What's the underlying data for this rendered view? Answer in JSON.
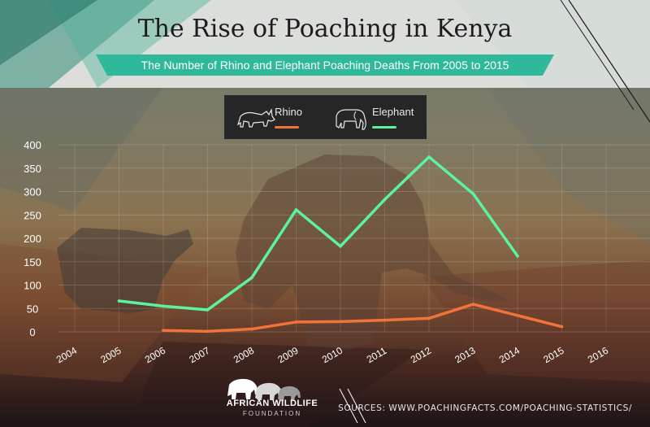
{
  "header": {
    "title": "The Rise of Poaching in Kenya",
    "subtitle": "The Number of Rhino and Elephant Poaching Deaths From 2005 to 2015"
  },
  "legend": {
    "rhino_label": "Rhino",
    "elephant_label": "Elephant"
  },
  "footer": {
    "logo_text": "AFRICAN WILDLIFE",
    "logo_subtext": "FOUNDATION",
    "source": "SOURCES: WWW.POACHINGFACTS.COM/POACHING-STATISTICS/"
  },
  "colors": {
    "rhino": "#f2733a",
    "elephant": "#5cf2a0",
    "accent": "#2fb99a",
    "axis_text": "#ffffff"
  },
  "icons": [
    "rhino-icon",
    "elephant-icon",
    "elephant-herd-logo-icon"
  ],
  "chart_data": {
    "type": "line",
    "title": "The Rise of Poaching in Kenya",
    "subtitle": "The Number of Rhino and Elephant Poaching Deaths From 2005 to 2015",
    "x": [
      "2004",
      "2005",
      "2006",
      "2007",
      "2008",
      "2009",
      "2010",
      "2011",
      "2012",
      "2013",
      "2014",
      "2015",
      "2016"
    ],
    "series": [
      {
        "name": "Rhino",
        "x": [
          "2006",
          "2007",
          "2008",
          "2009",
          "2010",
          "2011",
          "2012",
          "2013",
          "2014",
          "2015"
        ],
        "values": [
          3,
          1,
          6,
          21,
          22,
          25,
          29,
          59,
          35,
          11
        ]
      },
      {
        "name": "Elephant",
        "x": [
          "2005",
          "2006",
          "2007",
          "2008",
          "2009",
          "2010",
          "2011",
          "2012",
          "2013",
          "2014"
        ],
        "values": [
          66,
          55,
          47,
          116,
          261,
          183,
          283,
          374,
          295,
          162
        ]
      }
    ],
    "yticks": [
      "0",
      "50",
      "100",
      "150",
      "200",
      "250",
      "300",
      "350",
      "400"
    ],
    "ylim": [
      0,
      400
    ],
    "xlabel": "",
    "ylabel": "",
    "grid": true,
    "legend_position": "top-center"
  }
}
